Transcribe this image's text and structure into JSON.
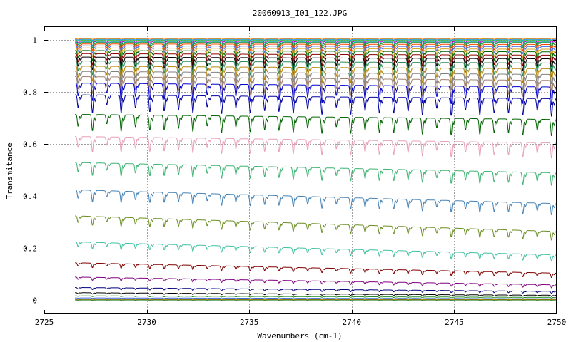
{
  "chart_data": {
    "type": "line",
    "title": "20060913_I01_122.JPG",
    "xlabel": "Wavenumbers (cm-1)",
    "ylabel": "Transmitance",
    "xlim": [
      2725,
      2750
    ],
    "ylim": [
      -0.05,
      1.05
    ],
    "x_data_range": [
      2726.5,
      2750
    ],
    "xticks": [
      2725,
      2730,
      2735,
      2740,
      2745,
      2750
    ],
    "yticks": [
      0,
      0.2,
      0.4,
      0.6,
      0.8,
      1
    ],
    "ytick_labels": [
      "0",
      "0.2",
      "0.4",
      "0.6",
      "0.8",
      "1"
    ],
    "grid": true,
    "line_spacing_cm1": 0.7,
    "series": [
      {
        "baseline": [
          1.005,
          1.005
        ],
        "depth": 0.002,
        "color": "#ff8c00"
      },
      {
        "baseline": [
          1.003,
          1.003
        ],
        "depth": 0.004,
        "color": "#1e90ff"
      },
      {
        "baseline": [
          1.0,
          1.0
        ],
        "depth": 0.006,
        "color": "#32cd32"
      },
      {
        "baseline": [
          0.997,
          0.997
        ],
        "depth": 0.01,
        "color": "#c000c0"
      },
      {
        "baseline": [
          0.993,
          0.993
        ],
        "depth": 0.015,
        "color": "#00a0a0"
      },
      {
        "baseline": [
          0.99,
          0.99
        ],
        "depth": 0.02,
        "color": "#228b22"
      },
      {
        "baseline": [
          0.985,
          0.983
        ],
        "depth": 0.025,
        "color": "#ff4500"
      },
      {
        "baseline": [
          0.978,
          0.975
        ],
        "depth": 0.03,
        "color": "#4169e1"
      },
      {
        "baseline": [
          0.97,
          0.965
        ],
        "depth": 0.035,
        "color": "#daa520"
      },
      {
        "baseline": [
          0.96,
          0.955
        ],
        "depth": 0.04,
        "color": "#006400"
      },
      {
        "baseline": [
          0.948,
          0.942
        ],
        "depth": 0.045,
        "color": "#8b0000"
      },
      {
        "baseline": [
          0.935,
          0.928
        ],
        "depth": 0.05,
        "color": "#000000"
      },
      {
        "baseline": [
          0.92,
          0.912
        ],
        "depth": 0.055,
        "color": "#2e8b57"
      },
      {
        "baseline": [
          0.9,
          0.89
        ],
        "depth": 0.06,
        "color": "#b8860b"
      },
      {
        "baseline": [
          0.88,
          0.868
        ],
        "depth": 0.065,
        "color": "#808080"
      },
      {
        "baseline": [
          0.86,
          0.845
        ],
        "depth": 0.068,
        "color": "#a08070"
      },
      {
        "baseline": [
          0.835,
          0.82
        ],
        "depth": 0.07,
        "color": "#0000cd"
      },
      {
        "baseline": [
          0.79,
          0.775
        ],
        "depth": 0.07,
        "color": "#0000a0"
      },
      {
        "baseline": [
          0.715,
          0.695
        ],
        "depth": 0.065,
        "color": "#006400"
      },
      {
        "baseline": [
          0.63,
          0.605
        ],
        "depth": 0.06,
        "color": "#e8a0b8"
      },
      {
        "baseline": [
          0.53,
          0.49
        ],
        "depth": 0.05,
        "color": "#3cb371"
      },
      {
        "baseline": [
          0.425,
          0.372
        ],
        "depth": 0.045,
        "color": "#4682b4"
      },
      {
        "baseline": [
          0.325,
          0.265
        ],
        "depth": 0.035,
        "color": "#6b8e23"
      },
      {
        "baseline": [
          0.225,
          0.175
        ],
        "depth": 0.025,
        "color": "#40c0a0"
      },
      {
        "baseline": [
          0.145,
          0.105
        ],
        "depth": 0.018,
        "color": "#800000"
      },
      {
        "baseline": [
          0.09,
          0.06
        ],
        "depth": 0.012,
        "color": "#800080"
      },
      {
        "baseline": [
          0.05,
          0.035
        ],
        "depth": 0.008,
        "color": "#000080"
      },
      {
        "baseline": [
          0.03,
          0.02
        ],
        "depth": 0.005,
        "color": "#000000"
      },
      {
        "baseline": [
          0.018,
          0.012
        ],
        "depth": 0.003,
        "color": "#228b22"
      },
      {
        "baseline": [
          0.01,
          0.007
        ],
        "depth": 0.002,
        "color": "#4169e1"
      },
      {
        "baseline": [
          0.005,
          0.004
        ],
        "depth": 0.001,
        "color": "#ff8c00"
      },
      {
        "baseline": [
          0.002,
          0.002
        ],
        "depth": 0.001,
        "color": "#006400"
      }
    ]
  }
}
